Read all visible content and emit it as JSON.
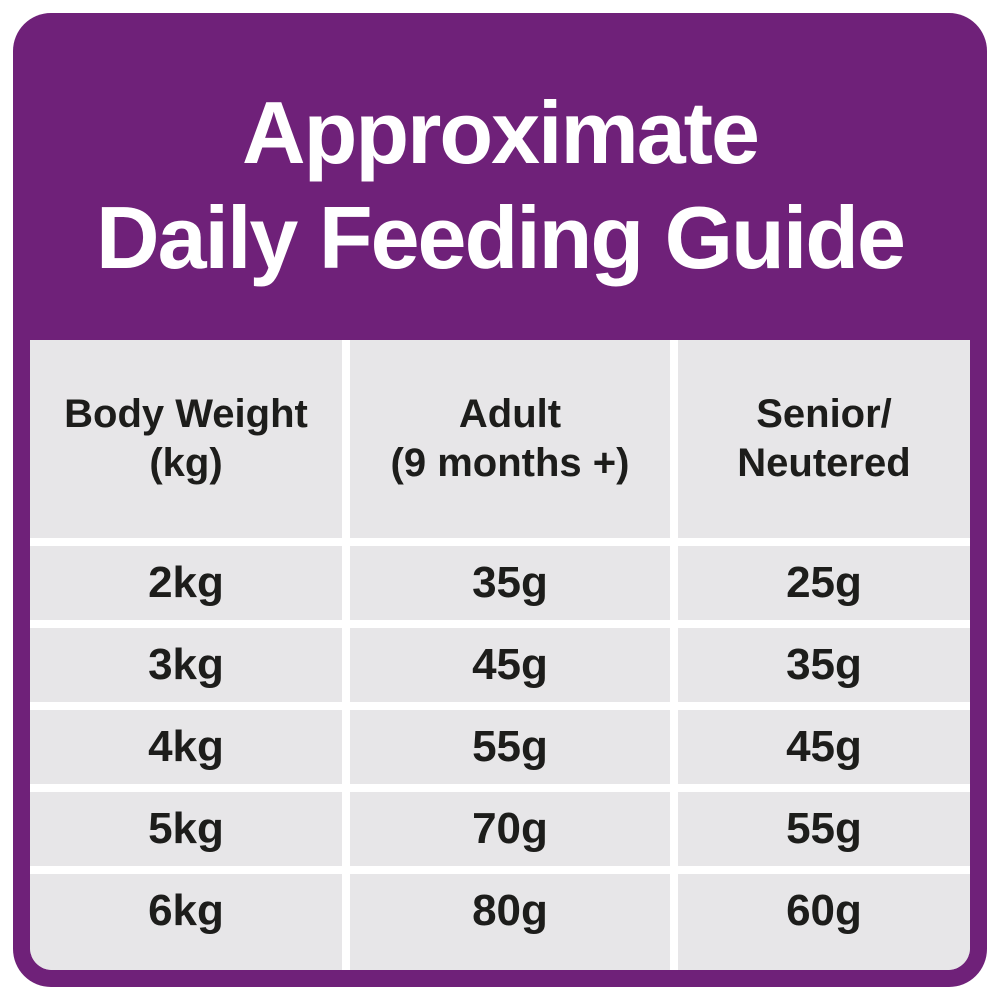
{
  "title": {
    "line1": "Approximate",
    "line2": "Daily Feeding Guide"
  },
  "table": {
    "headers": [
      {
        "line1": "Body Weight",
        "line2": "(kg)"
      },
      {
        "line1": "Adult",
        "line2": "(9 months +)"
      },
      {
        "line1": "Senior/",
        "line2": "Neutered"
      }
    ],
    "rows": [
      [
        "2kg",
        "35g",
        "25g"
      ],
      [
        "3kg",
        "45g",
        "35g"
      ],
      [
        "4kg",
        "55g",
        "45g"
      ],
      [
        "5kg",
        "70g",
        "55g"
      ],
      [
        "6kg",
        "80g",
        "60g"
      ]
    ]
  },
  "chart_data": {
    "type": "table",
    "title": "Approximate Daily Feeding Guide",
    "columns": [
      "Body Weight (kg)",
      "Adult (9 months +)",
      "Senior/Neutered"
    ],
    "rows": [
      {
        "body_weight": "2kg",
        "adult": "35g",
        "senior_neutered": "25g"
      },
      {
        "body_weight": "3kg",
        "adult": "45g",
        "senior_neutered": "35g"
      },
      {
        "body_weight": "4kg",
        "adult": "55g",
        "senior_neutered": "45g"
      },
      {
        "body_weight": "5kg",
        "adult": "70g",
        "senior_neutered": "55g"
      },
      {
        "body_weight": "6kg",
        "adult": "80g",
        "senior_neutered": "60g"
      }
    ],
    "units": "grams per day"
  },
  "colors": {
    "purple": "#6F2179",
    "cell_gray": "#E7E6E8",
    "text_dark": "#1D1D1B",
    "white": "#FFFFFF"
  }
}
